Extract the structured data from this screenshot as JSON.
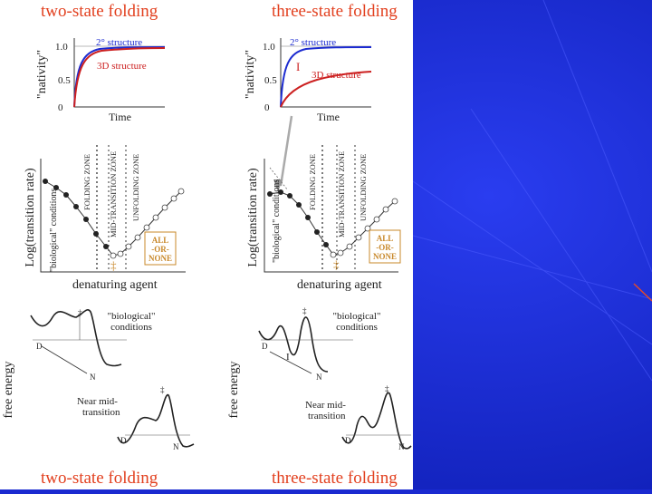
{
  "titles": {
    "left_top": "two-state folding",
    "right_top": "three-state folding",
    "left_bottom": "two-state folding",
    "right_bottom": "three-state folding"
  },
  "nativity_plots": {
    "ylabel": "\"nativity\"",
    "xlabel": "Time",
    "ticks": [
      "1.0",
      "0.5",
      "0"
    ],
    "secondary_label": "2° structure",
    "tertiary_label": "3D structure",
    "intermediate_marker": "I"
  },
  "chevron_plots": {
    "ylabel": "Log(transition rate)",
    "xlabel": "denaturing agent",
    "bio_label": "\"biological\" conditions",
    "zones": [
      "FOLDING ZONE",
      "MID-TRANSITION ZONE",
      "UNFOLDING ZONE"
    ],
    "box_lines": [
      "ALL",
      "-OR-",
      "NONE"
    ],
    "ts_mark": "‡"
  },
  "energy_plots": {
    "ylabel": "free energy",
    "bio_label_line1": "\"biological\"",
    "bio_label_line2": "conditions",
    "mid_label_line1": "Near mid-",
    "mid_label_line2": "transition",
    "state_d": "D",
    "state_n": "N",
    "state_i": "I",
    "ts_mark": "‡"
  },
  "colors": {
    "title_red": "#e2401f",
    "curve_blue": "#1c2bd0",
    "curve_red": "#cc2020",
    "box_brown": "#c8882a",
    "slide_blue": "#1a2ad0"
  }
}
